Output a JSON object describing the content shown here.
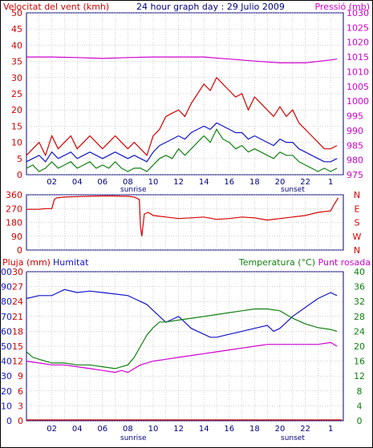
{
  "colors": {
    "red": "#d40000",
    "magenta": "#d000d0",
    "blue": "#1414c8",
    "green": "#108010",
    "navy": "#000080",
    "grid": "#a0a0a0"
  },
  "chart_data": [
    {
      "type": "line",
      "labels": {
        "wind": "Velocitat del vent (kmh)",
        "title": "24 hour graph day : 29 Julio 2009",
        "pressure": "Pressió (mb)"
      },
      "x_ticks": [
        "02",
        "04",
        "06",
        "08",
        "10",
        "12",
        "14",
        "16",
        "18",
        "20",
        "22",
        "1"
      ],
      "sunrise_label": "sunrise",
      "sunset_label": "sunset",
      "sunrise_hour": 7.5,
      "sunset_hour": 20.3,
      "xlim": [
        0,
        25
      ],
      "ylim_left": [
        0,
        50
      ],
      "left_ticks": [
        "0",
        "5",
        "10",
        "15",
        "20",
        "25",
        "30",
        "35",
        "40",
        "45",
        "50"
      ],
      "ylim_right": [
        975,
        1030
      ],
      "right_ticks": [
        "975",
        "980",
        "985",
        "990",
        "995",
        "1000",
        "1005",
        "1010",
        "1015",
        "1020",
        "1025",
        "1030"
      ],
      "series": [
        {
          "name": "gust",
          "color": "#d40000",
          "x": [
            0,
            0.5,
            1,
            1.5,
            2,
            2.5,
            3,
            3.5,
            4,
            4.5,
            5,
            5.5,
            6,
            6.5,
            7,
            7.5,
            8,
            8.5,
            9,
            9.5,
            10,
            10.5,
            11,
            11.5,
            12,
            12.5,
            13,
            13.5,
            14,
            14.5,
            15,
            15.5,
            16,
            16.5,
            17,
            17.5,
            18,
            18.5,
            19,
            19.5,
            20,
            20.5,
            21,
            21.5,
            22,
            22.5,
            23,
            23.5,
            24,
            24.5
          ],
          "y": [
            6,
            8,
            10,
            6,
            12,
            8,
            10,
            12,
            8,
            10,
            12,
            10,
            8,
            10,
            12,
            10,
            8,
            10,
            8,
            6,
            12,
            14,
            18,
            19,
            20,
            18,
            22,
            25,
            28,
            26,
            30,
            28,
            26,
            24,
            25,
            20,
            24,
            22,
            20,
            18,
            21,
            18,
            20,
            16,
            14,
            12,
            10,
            8,
            8,
            9
          ]
        },
        {
          "name": "mean",
          "color": "#1414c8",
          "x": [
            0,
            0.5,
            1,
            1.5,
            2,
            2.5,
            3,
            3.5,
            4,
            4.5,
            5,
            5.5,
            6,
            6.5,
            7,
            7.5,
            8,
            8.5,
            9,
            9.5,
            10,
            10.5,
            11,
            11.5,
            12,
            12.5,
            13,
            13.5,
            14,
            14.5,
            15,
            15.5,
            16,
            16.5,
            17,
            17.5,
            18,
            18.5,
            19,
            19.5,
            20,
            20.5,
            21,
            21.5,
            22,
            22.5,
            23,
            23.5,
            24,
            24.5
          ],
          "y": [
            4,
            5,
            6,
            4,
            7,
            5,
            6,
            7,
            5,
            6,
            7,
            6,
            5,
            6,
            7,
            6,
            5,
            6,
            5,
            4,
            7,
            9,
            10,
            11,
            12,
            11,
            13,
            14,
            15,
            14,
            16,
            15,
            14,
            13,
            13,
            11,
            12,
            11,
            10,
            9,
            11,
            10,
            10,
            8,
            7,
            6,
            5,
            4,
            4,
            5
          ]
        },
        {
          "name": "min",
          "color": "#108010",
          "x": [
            0,
            0.5,
            1,
            1.5,
            2,
            2.5,
            3,
            3.5,
            4,
            4.5,
            5,
            5.5,
            6,
            6.5,
            7,
            7.5,
            8,
            8.5,
            9,
            9.5,
            10,
            10.5,
            11,
            11.5,
            12,
            12.5,
            13,
            13.5,
            14,
            14.5,
            15,
            15.5,
            16,
            16.5,
            17,
            17.5,
            18,
            18.5,
            19,
            19.5,
            20,
            20.5,
            21,
            21.5,
            22,
            22.5,
            23,
            23.5,
            24,
            24.5
          ],
          "y": [
            2,
            3,
            1,
            2,
            4,
            2,
            3,
            4,
            2,
            3,
            4,
            2,
            3,
            2,
            4,
            2,
            1,
            2,
            2,
            1,
            3,
            5,
            6,
            5,
            8,
            6,
            8,
            10,
            12,
            10,
            14,
            11,
            10,
            8,
            9,
            7,
            8,
            7,
            6,
            5,
            7,
            6,
            6,
            4,
            3,
            2,
            1,
            2,
            1,
            2
          ]
        },
        {
          "name": "pressure",
          "color": "#d000d0",
          "x": [
            0,
            2,
            4,
            6,
            8,
            10,
            12,
            14,
            16,
            18,
            20,
            22,
            24,
            24.5
          ],
          "y": [
            1015,
            1015,
            1014.8,
            1014.5,
            1014.8,
            1015,
            1015,
            1015,
            1014.3,
            1013.6,
            1013,
            1013,
            1014,
            1014.3
          ]
        }
      ]
    },
    {
      "type": "line",
      "x_ticks": [
        "02",
        "04",
        "06",
        "08",
        "10",
        "12",
        "14",
        "16",
        "18",
        "20",
        "22",
        "1"
      ],
      "ylim": [
        0,
        360
      ],
      "left_ticks": [
        "0",
        "90",
        "180",
        "270",
        "360"
      ],
      "right_labels": [
        "N",
        "E",
        "S",
        "W",
        "N"
      ],
      "sunrise_label": "sunrise",
      "sunset_label": "sunset",
      "series": [
        {
          "name": "direction",
          "color": "#d40000",
          "x": [
            0,
            1,
            1.5,
            2,
            2.2,
            2.4,
            3,
            4,
            5,
            6,
            7,
            7.5,
            8,
            8.5,
            8.9,
            9,
            9.1,
            9.3,
            9.6,
            10,
            11,
            12,
            13,
            14,
            15,
            16,
            17,
            18,
            19,
            20,
            21,
            22,
            23,
            24,
            24.3,
            24.6
          ],
          "y": [
            265,
            265,
            270,
            270,
            330,
            340,
            345,
            348,
            350,
            352,
            352,
            350,
            350,
            345,
            330,
            150,
            90,
            235,
            245,
            225,
            215,
            205,
            210,
            215,
            200,
            205,
            215,
            210,
            195,
            205,
            215,
            225,
            245,
            255,
            300,
            340
          ]
        }
      ]
    },
    {
      "type": "line",
      "labels": {
        "rain": "Pluja (mm)",
        "humidity": "Humitat",
        "temperature": "Temperatura (°C)",
        "dew": "Punt rosada"
      },
      "x_ticks": [
        "02",
        "04",
        "06",
        "08",
        "10",
        "12",
        "14",
        "16",
        "18",
        "20",
        "22",
        "1"
      ],
      "sunrise_label": "sunrise",
      "sunset_label": "sunset",
      "humidity_ticks": [
        "0",
        "10",
        "20",
        "30",
        "40",
        "50",
        "60",
        "70",
        "80",
        "90",
        "100"
      ],
      "rain_ticks": [
        "0",
        "3",
        "6",
        "9",
        "12",
        "15",
        "18",
        "21",
        "24",
        "27",
        "30"
      ],
      "temp_ticks": [
        "0",
        "4",
        "8",
        "12",
        "16",
        "20",
        "24",
        "28",
        "32",
        "36",
        "40"
      ],
      "ylim_humidity": [
        0,
        100
      ],
      "ylim_temp": [
        0,
        40
      ],
      "series": [
        {
          "name": "humidity",
          "color": "#1414c8",
          "x": [
            0,
            1,
            2,
            2.5,
            3,
            4,
            5,
            6,
            7,
            8,
            8.5,
            9,
            9.5,
            10,
            10.5,
            11,
            11.5,
            12,
            12.5,
            13,
            13.5,
            14,
            14.5,
            15,
            16,
            17,
            18,
            19,
            19.5,
            20,
            21,
            22,
            23,
            24,
            24.5
          ],
          "y": [
            82,
            84,
            84,
            86,
            88,
            86,
            87,
            86,
            85,
            84,
            82,
            80,
            78,
            74,
            70,
            66,
            68,
            70,
            66,
            62,
            60,
            58,
            56,
            56,
            58,
            60,
            62,
            64,
            60,
            62,
            70,
            76,
            82,
            86,
            84
          ]
        },
        {
          "name": "temperature",
          "color": "#108010",
          "x": [
            0,
            0.5,
            1,
            2,
            3,
            4,
            5,
            6,
            7,
            8,
            8.5,
            9,
            9.5,
            10,
            10.5,
            11,
            12,
            13,
            14,
            15,
            16,
            17,
            18,
            19,
            20,
            20.5,
            21,
            22,
            23,
            24,
            24.5
          ],
          "y": [
            18.5,
            17,
            16.5,
            15.5,
            15.5,
            15,
            15,
            14.5,
            14,
            15,
            17,
            20,
            23,
            25,
            26.5,
            26.5,
            27,
            27.5,
            28,
            28.5,
            29,
            29.5,
            30,
            30,
            29.5,
            28.5,
            27.5,
            26,
            25,
            24.5,
            24
          ]
        },
        {
          "name": "dew point",
          "color": "#d000d0",
          "x": [
            0,
            1,
            2,
            3,
            4,
            5,
            6,
            7,
            7.5,
            8,
            8.5,
            9,
            9.5,
            10,
            11,
            12,
            13,
            14,
            15,
            16,
            17,
            18,
            19,
            20,
            21,
            22,
            23,
            24,
            24.5
          ],
          "y": [
            16,
            15.5,
            15,
            15,
            14.5,
            14,
            13.5,
            13,
            13.5,
            13,
            14,
            15,
            15.5,
            16,
            16.5,
            17,
            17.5,
            18,
            18.5,
            19,
            19.5,
            20,
            20.5,
            20.5,
            20.5,
            20.5,
            20.5,
            21,
            20
          ]
        },
        {
          "name": "rain",
          "color": "#d40000",
          "x": [
            0,
            24.9
          ],
          "y": [
            0,
            0
          ]
        }
      ]
    }
  ]
}
